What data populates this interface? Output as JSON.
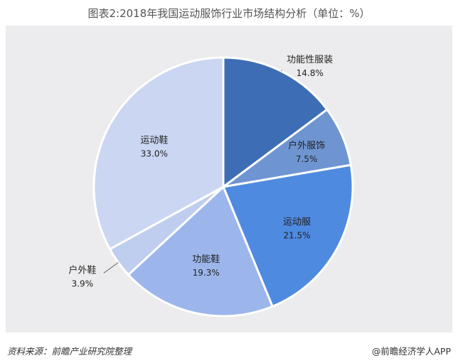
{
  "title": "图表2:2018年我国运动服饰行业市场结构分析（单位：%）",
  "footer": {
    "source": "资料来源：前瞻产业研究院整理",
    "credit": "@前瞻经济学人APP"
  },
  "chart_data": {
    "type": "pie",
    "start": "12 o'clock",
    "direction": "clockwise",
    "slices": [
      {
        "label": "功能性服装",
        "value": 14.8,
        "value_label": "14.8%",
        "color": "#3d6db5"
      },
      {
        "label": "户外服饰",
        "value": 7.5,
        "value_label": "7.5%",
        "color": "#6e95d2"
      },
      {
        "label": "运动服",
        "value": 21.5,
        "value_label": "21.5%",
        "color": "#4e8ae0"
      },
      {
        "label": "功能鞋",
        "value": 19.3,
        "value_label": "19.3%",
        "color": "#9cb6ec"
      },
      {
        "label": "户外鞋",
        "value": 3.9,
        "value_label": "3.9%",
        "color": "#bfcdef"
      },
      {
        "label": "运动鞋",
        "value": 33.0,
        "value_label": "33.0%",
        "color": "#cad6f2"
      }
    ]
  }
}
